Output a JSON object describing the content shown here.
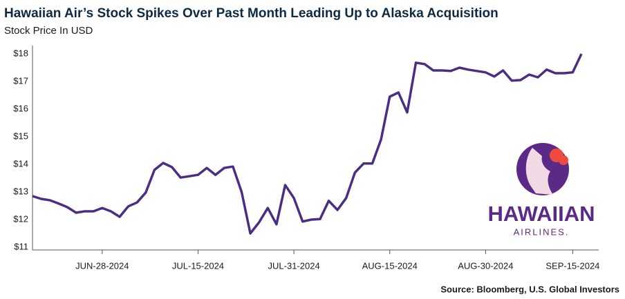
{
  "chart_data": {
    "type": "line",
    "title": "Hawaiian Air’s Stock Spikes Over Past Month Leading Up to Alaska Acquisition",
    "subtitle": "Stock Price In USD",
    "source": "Source: Bloomberg, U.S. Global Investors",
    "logo": {
      "name": "HAWAIIAN",
      "subname": "AIRLINES."
    },
    "categories": [
      null,
      null,
      null,
      null,
      null,
      null,
      null,
      null,
      "JUN-28-2024",
      null,
      null,
      null,
      null,
      null,
      null,
      null,
      null,
      null,
      null,
      "JUL-15-2024",
      null,
      null,
      null,
      null,
      null,
      null,
      null,
      null,
      null,
      null,
      "JUL-31-2024",
      null,
      null,
      null,
      null,
      null,
      null,
      null,
      null,
      null,
      null,
      "AUG-15-2024",
      null,
      null,
      null,
      null,
      null,
      null,
      null,
      null,
      null,
      null,
      "AUG-30-2024",
      null,
      null,
      null,
      null,
      null,
      null,
      null,
      null,
      null,
      "SEP-15-2024",
      null
    ],
    "series": [
      {
        "name": "Hawaiian Air",
        "color": "#4b2d83",
        "values": [
          12.85,
          12.75,
          12.7,
          12.58,
          12.45,
          12.25,
          12.3,
          12.3,
          12.42,
          12.3,
          12.1,
          12.48,
          12.62,
          12.98,
          13.8,
          14.05,
          13.9,
          13.52,
          13.57,
          13.62,
          13.87,
          13.62,
          13.87,
          13.92,
          13.0,
          11.5,
          11.9,
          12.42,
          11.83,
          13.25,
          12.78,
          11.93,
          12.0,
          12.02,
          12.68,
          12.35,
          12.78,
          13.7,
          14.03,
          14.03,
          14.9,
          16.45,
          16.6,
          15.88,
          17.68,
          17.63,
          17.4,
          17.4,
          17.38,
          17.5,
          17.43,
          17.38,
          17.33,
          17.18,
          17.4,
          17.03,
          17.05,
          17.25,
          17.15,
          17.43,
          17.3,
          17.3,
          17.33,
          18.0
        ]
      }
    ],
    "ylim": [
      11,
      18
    ],
    "yticks": [
      {
        "value": 11,
        "label": "$11"
      },
      {
        "value": 12,
        "label": "$12"
      },
      {
        "value": 13,
        "label": "$13"
      },
      {
        "value": 14,
        "label": "$14"
      },
      {
        "value": 15,
        "label": "$15"
      },
      {
        "value": 16,
        "label": "$16"
      },
      {
        "value": 17,
        "label": "$17"
      },
      {
        "value": 18,
        "label": "$18"
      }
    ],
    "grid": false
  }
}
